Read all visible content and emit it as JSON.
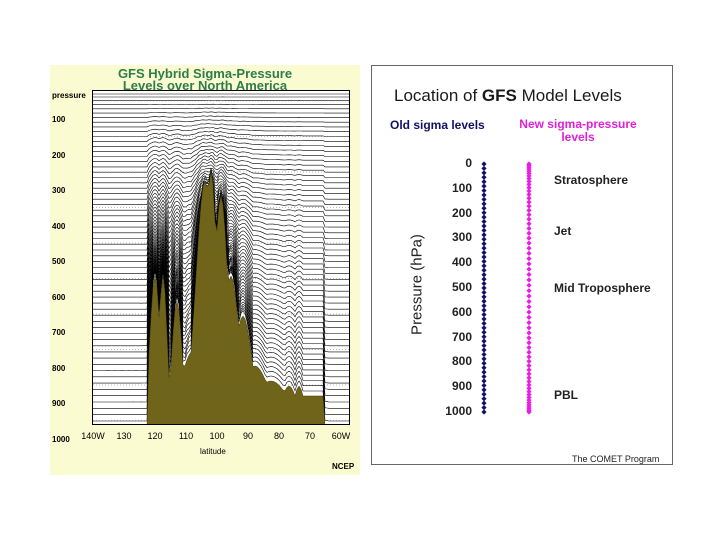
{
  "left_figure": {
    "title_line1": "GFS Hybrid Sigma-Pressure",
    "title_line2": "Levels over North America",
    "y_axis_label": "pressure",
    "y_ticks": [
      "100",
      "200",
      "300",
      "400",
      "500",
      "600",
      "700",
      "800",
      "900",
      "1000"
    ],
    "x_ticks": [
      "140W",
      "130",
      "120",
      "110",
      "100",
      "90",
      "80",
      "70",
      "60W"
    ],
    "x_axis_label": "latitude",
    "credit": "NCEP",
    "terrain_color": "#6f6419"
  },
  "right_figure": {
    "title_prefix": "Location of ",
    "title_bold": "GFS",
    "title_suffix": " Model Levels",
    "old_levels_label": "Old sigma levels",
    "new_levels_label_line1": "New sigma-pressure",
    "new_levels_label_line2": "levels",
    "y_axis_title": "Pressure (hPa)",
    "pressure_ticks": [
      "0",
      "100",
      "200",
      "300",
      "400",
      "500",
      "600",
      "700",
      "800",
      "900",
      "1000"
    ],
    "regions": [
      {
        "label": "Stratosphere",
        "pressure": 65
      },
      {
        "label": "Jet",
        "pressure": 270
      },
      {
        "label": "Mid Troposphere",
        "pressure": 500
      },
      {
        "label": "PBL",
        "pressure": 930
      }
    ],
    "old_color": "#16106a",
    "new_color": "#e81ee0",
    "credit": "The COMET Program"
  }
}
